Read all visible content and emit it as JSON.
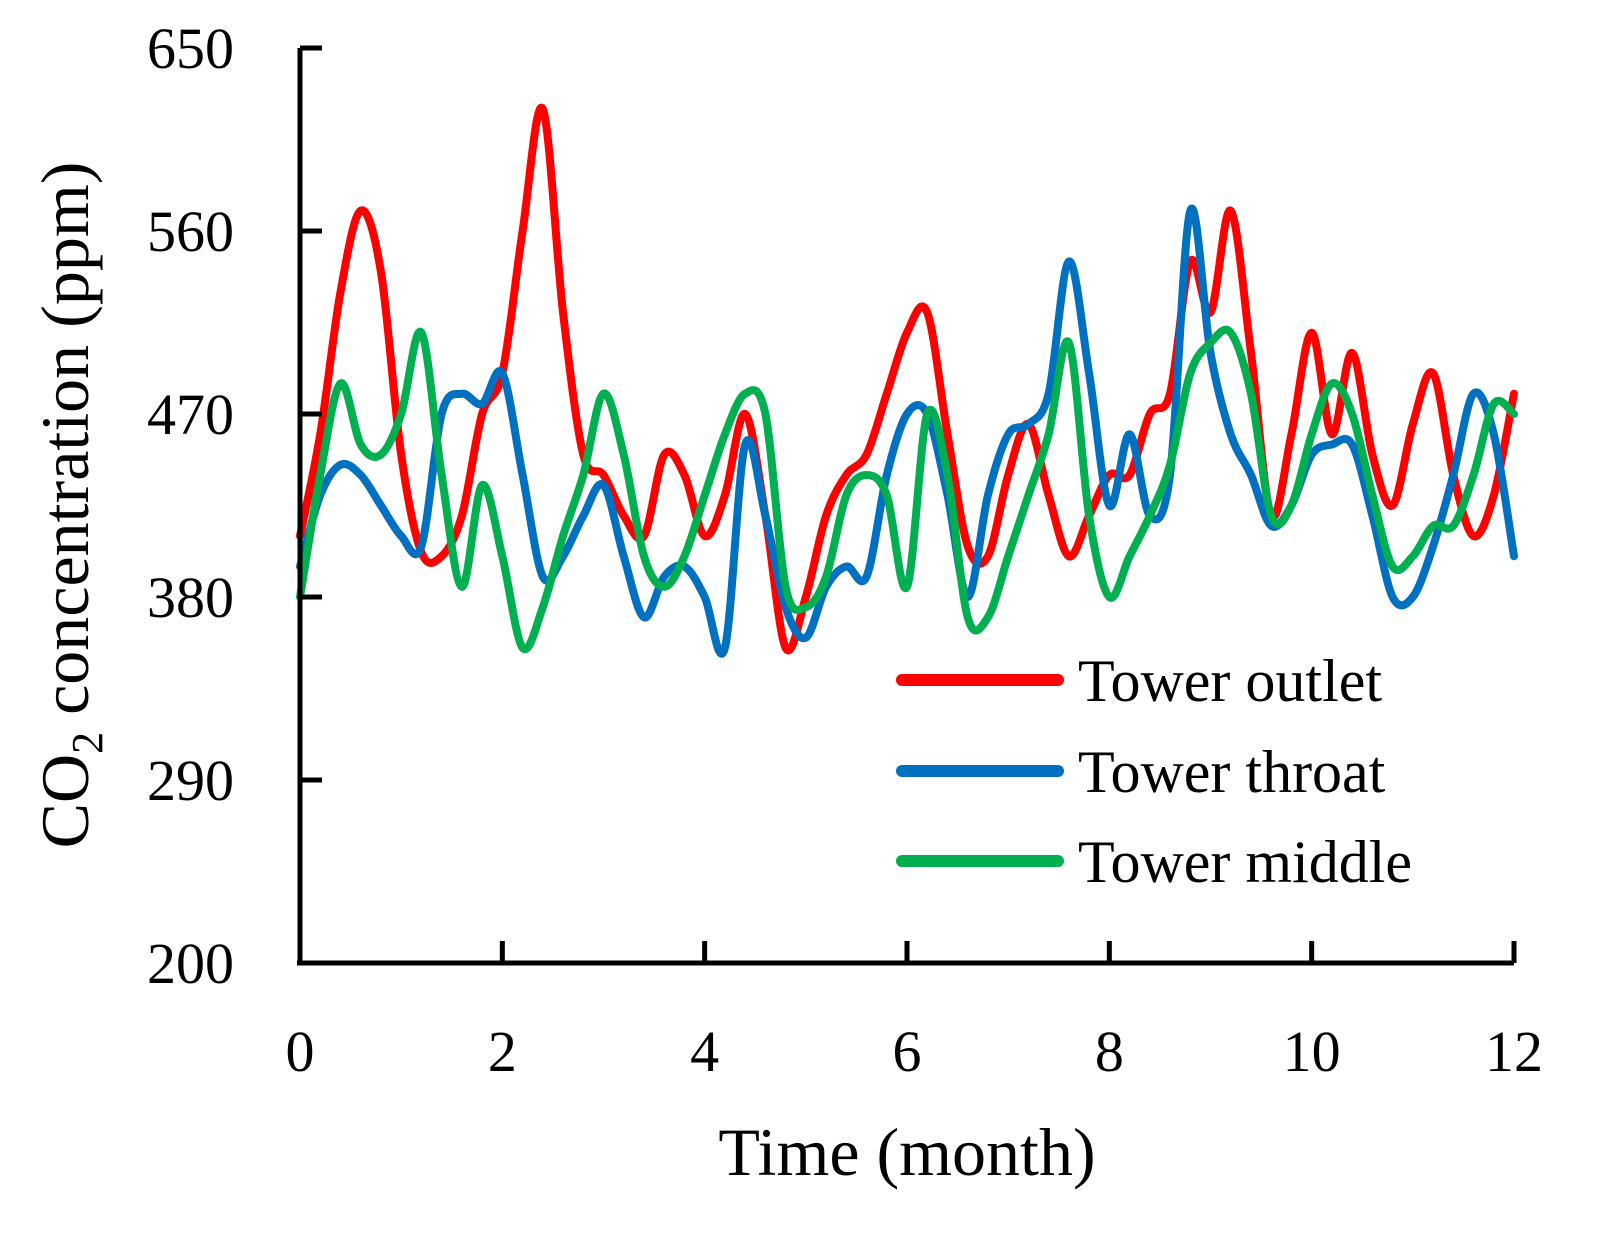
{
  "chart_data": {
    "type": "line",
    "title": "",
    "xlabel": "Time (month)",
    "ylabel": {
      "prefix": "CO",
      "subscript": "2",
      "suffix": " concentration (ppm)"
    },
    "xlim": [
      0,
      12
    ],
    "ylim": [
      200,
      650
    ],
    "xticks": [
      "0",
      "2",
      "4",
      "6",
      "8",
      "10",
      "12"
    ],
    "yticks": [
      "200",
      "290",
      "380",
      "470",
      "560",
      "650"
    ],
    "grid": false,
    "legend_position": "bottom-right",
    "series": [
      {
        "name": "Tower outlet",
        "color": "#ff0000",
        "x": [
          0,
          0.2,
          0.4,
          0.6,
          0.8,
          1.0,
          1.2,
          1.4,
          1.6,
          1.8,
          2.0,
          2.2,
          2.4,
          2.6,
          2.8,
          3.0,
          3.2,
          3.4,
          3.6,
          3.8,
          4.0,
          4.2,
          4.4,
          4.6,
          4.8,
          5.0,
          5.2,
          5.4,
          5.6,
          5.8,
          6.0,
          6.2,
          6.4,
          6.6,
          6.8,
          7.0,
          7.2,
          7.4,
          7.6,
          7.8,
          8.0,
          8.2,
          8.4,
          8.6,
          8.8,
          9.0,
          9.2,
          9.4,
          9.6,
          9.8,
          10.0,
          10.2,
          10.4,
          10.6,
          10.8,
          11.0,
          11.2,
          11.4,
          11.6,
          11.8,
          12.0
        ],
        "y": [
          410,
          460,
          530,
          570,
          540,
          450,
          402,
          400,
          420,
          470,
          490,
          560,
          620,
          520,
          450,
          440,
          420,
          410,
          450,
          440,
          410,
          430,
          470,
          420,
          355,
          380,
          420,
          440,
          450,
          480,
          510,
          520,
          460,
          405,
          400,
          440,
          465,
          430,
          400,
          420,
          440,
          440,
          470,
          480,
          545,
          520,
          570,
          500,
          420,
          460,
          510,
          460,
          500,
          450,
          425,
          465,
          490,
          440,
          410,
          430,
          480
        ]
      },
      {
        "name": "Tower throat",
        "color": "#0070c0",
        "x": [
          0,
          0.2,
          0.4,
          0.6,
          0.8,
          1.0,
          1.2,
          1.4,
          1.6,
          1.8,
          2.0,
          2.2,
          2.4,
          2.6,
          2.8,
          3.0,
          3.2,
          3.4,
          3.6,
          3.8,
          4.0,
          4.2,
          4.4,
          4.6,
          4.8,
          5.0,
          5.2,
          5.4,
          5.6,
          5.8,
          6.0,
          6.2,
          6.4,
          6.6,
          6.8,
          7.0,
          7.2,
          7.4,
          7.6,
          7.8,
          8.0,
          8.2,
          8.4,
          8.6,
          8.8,
          9.0,
          9.2,
          9.4,
          9.6,
          9.8,
          10.0,
          10.2,
          10.4,
          10.6,
          10.8,
          11.0,
          11.2,
          11.4,
          11.6,
          11.8,
          12.0
        ],
        "y": [
          395,
          430,
          445,
          440,
          425,
          410,
          405,
          470,
          480,
          475,
          490,
          440,
          390,
          400,
          420,
          435,
          400,
          370,
          390,
          395,
          380,
          355,
          455,
          420,
          375,
          360,
          385,
          395,
          390,
          440,
          470,
          470,
          430,
          380,
          430,
          460,
          465,
          480,
          545,
          490,
          425,
          460,
          420,
          440,
          570,
          500,
          460,
          440,
          415,
          425,
          450,
          455,
          455,
          420,
          380,
          380,
          405,
          440,
          480,
          460,
          400
        ]
      },
      {
        "name": "Tower middle",
        "color": "#00b050",
        "x": [
          0,
          0.2,
          0.4,
          0.6,
          0.8,
          1.0,
          1.2,
          1.4,
          1.6,
          1.8,
          2.0,
          2.2,
          2.4,
          2.6,
          2.8,
          3.0,
          3.2,
          3.4,
          3.6,
          3.8,
          4.0,
          4.2,
          4.4,
          4.6,
          4.8,
          5.0,
          5.2,
          5.4,
          5.6,
          5.8,
          6.0,
          6.2,
          6.4,
          6.6,
          6.8,
          7.0,
          7.2,
          7.4,
          7.6,
          7.8,
          8.0,
          8.2,
          8.4,
          8.6,
          8.8,
          9.0,
          9.2,
          9.4,
          9.6,
          9.8,
          10.0,
          10.2,
          10.4,
          10.6,
          10.8,
          11.0,
          11.2,
          11.4,
          11.6,
          11.8,
          12.0
        ],
        "y": [
          380,
          440,
          485,
          455,
          450,
          470,
          510,
          440,
          385,
          435,
          400,
          355,
          375,
          410,
          440,
          480,
          450,
          400,
          385,
          400,
          430,
          460,
          480,
          470,
          385,
          375,
          390,
          430,
          440,
          430,
          385,
          470,
          440,
          370,
          370,
          400,
          430,
          460,
          505,
          420,
          380,
          400,
          420,
          445,
          490,
          505,
          510,
          480,
          420,
          425,
          460,
          485,
          470,
          430,
          395,
          400,
          415,
          415,
          440,
          475,
          470
        ]
      }
    ]
  }
}
